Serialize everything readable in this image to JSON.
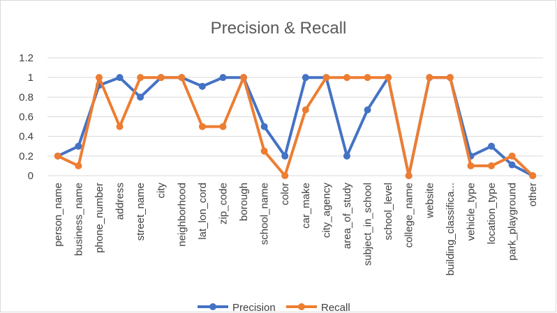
{
  "chart_data": {
    "type": "line",
    "title": "Precision & Recall",
    "xlabel": "",
    "ylabel": "",
    "ylim": [
      0,
      1.2
    ],
    "yticks": [
      "0",
      "0.2",
      "0.4",
      "0.6",
      "0.8",
      "1",
      "1.2"
    ],
    "grid": true,
    "legend_position": "bottom",
    "categories": [
      "person_name",
      "business_name",
      "phone_number",
      "address",
      "street_name",
      "city",
      "neighborhood",
      "lat_lon_cord",
      "zip_code",
      "borough",
      "school_name",
      "color",
      "car_make",
      "city_agency",
      "area_of_study",
      "subject_in_school",
      "school_level",
      "college_name",
      "website",
      "building_classifica...",
      "vehicle_type",
      "location_type",
      "park_playground",
      "other"
    ],
    "series": [
      {
        "name": "Precision",
        "color": "#4472c4",
        "values": [
          0.2,
          0.3,
          0.92,
          1.0,
          0.8,
          1.0,
          1.0,
          0.91,
          1.0,
          1.0,
          0.5,
          0.2,
          1.0,
          1.0,
          0.2,
          0.67,
          1.0,
          0.0,
          1.0,
          1.0,
          0.2,
          0.3,
          0.11,
          0.0
        ]
      },
      {
        "name": "Recall",
        "color": "#ed7d31",
        "values": [
          0.2,
          0.1,
          1.0,
          0.5,
          1.0,
          1.0,
          1.0,
          0.5,
          0.5,
          1.0,
          0.25,
          0.0,
          0.67,
          1.0,
          1.0,
          1.0,
          1.0,
          0.0,
          1.0,
          1.0,
          0.1,
          0.1,
          0.2,
          0.0
        ]
      }
    ]
  }
}
